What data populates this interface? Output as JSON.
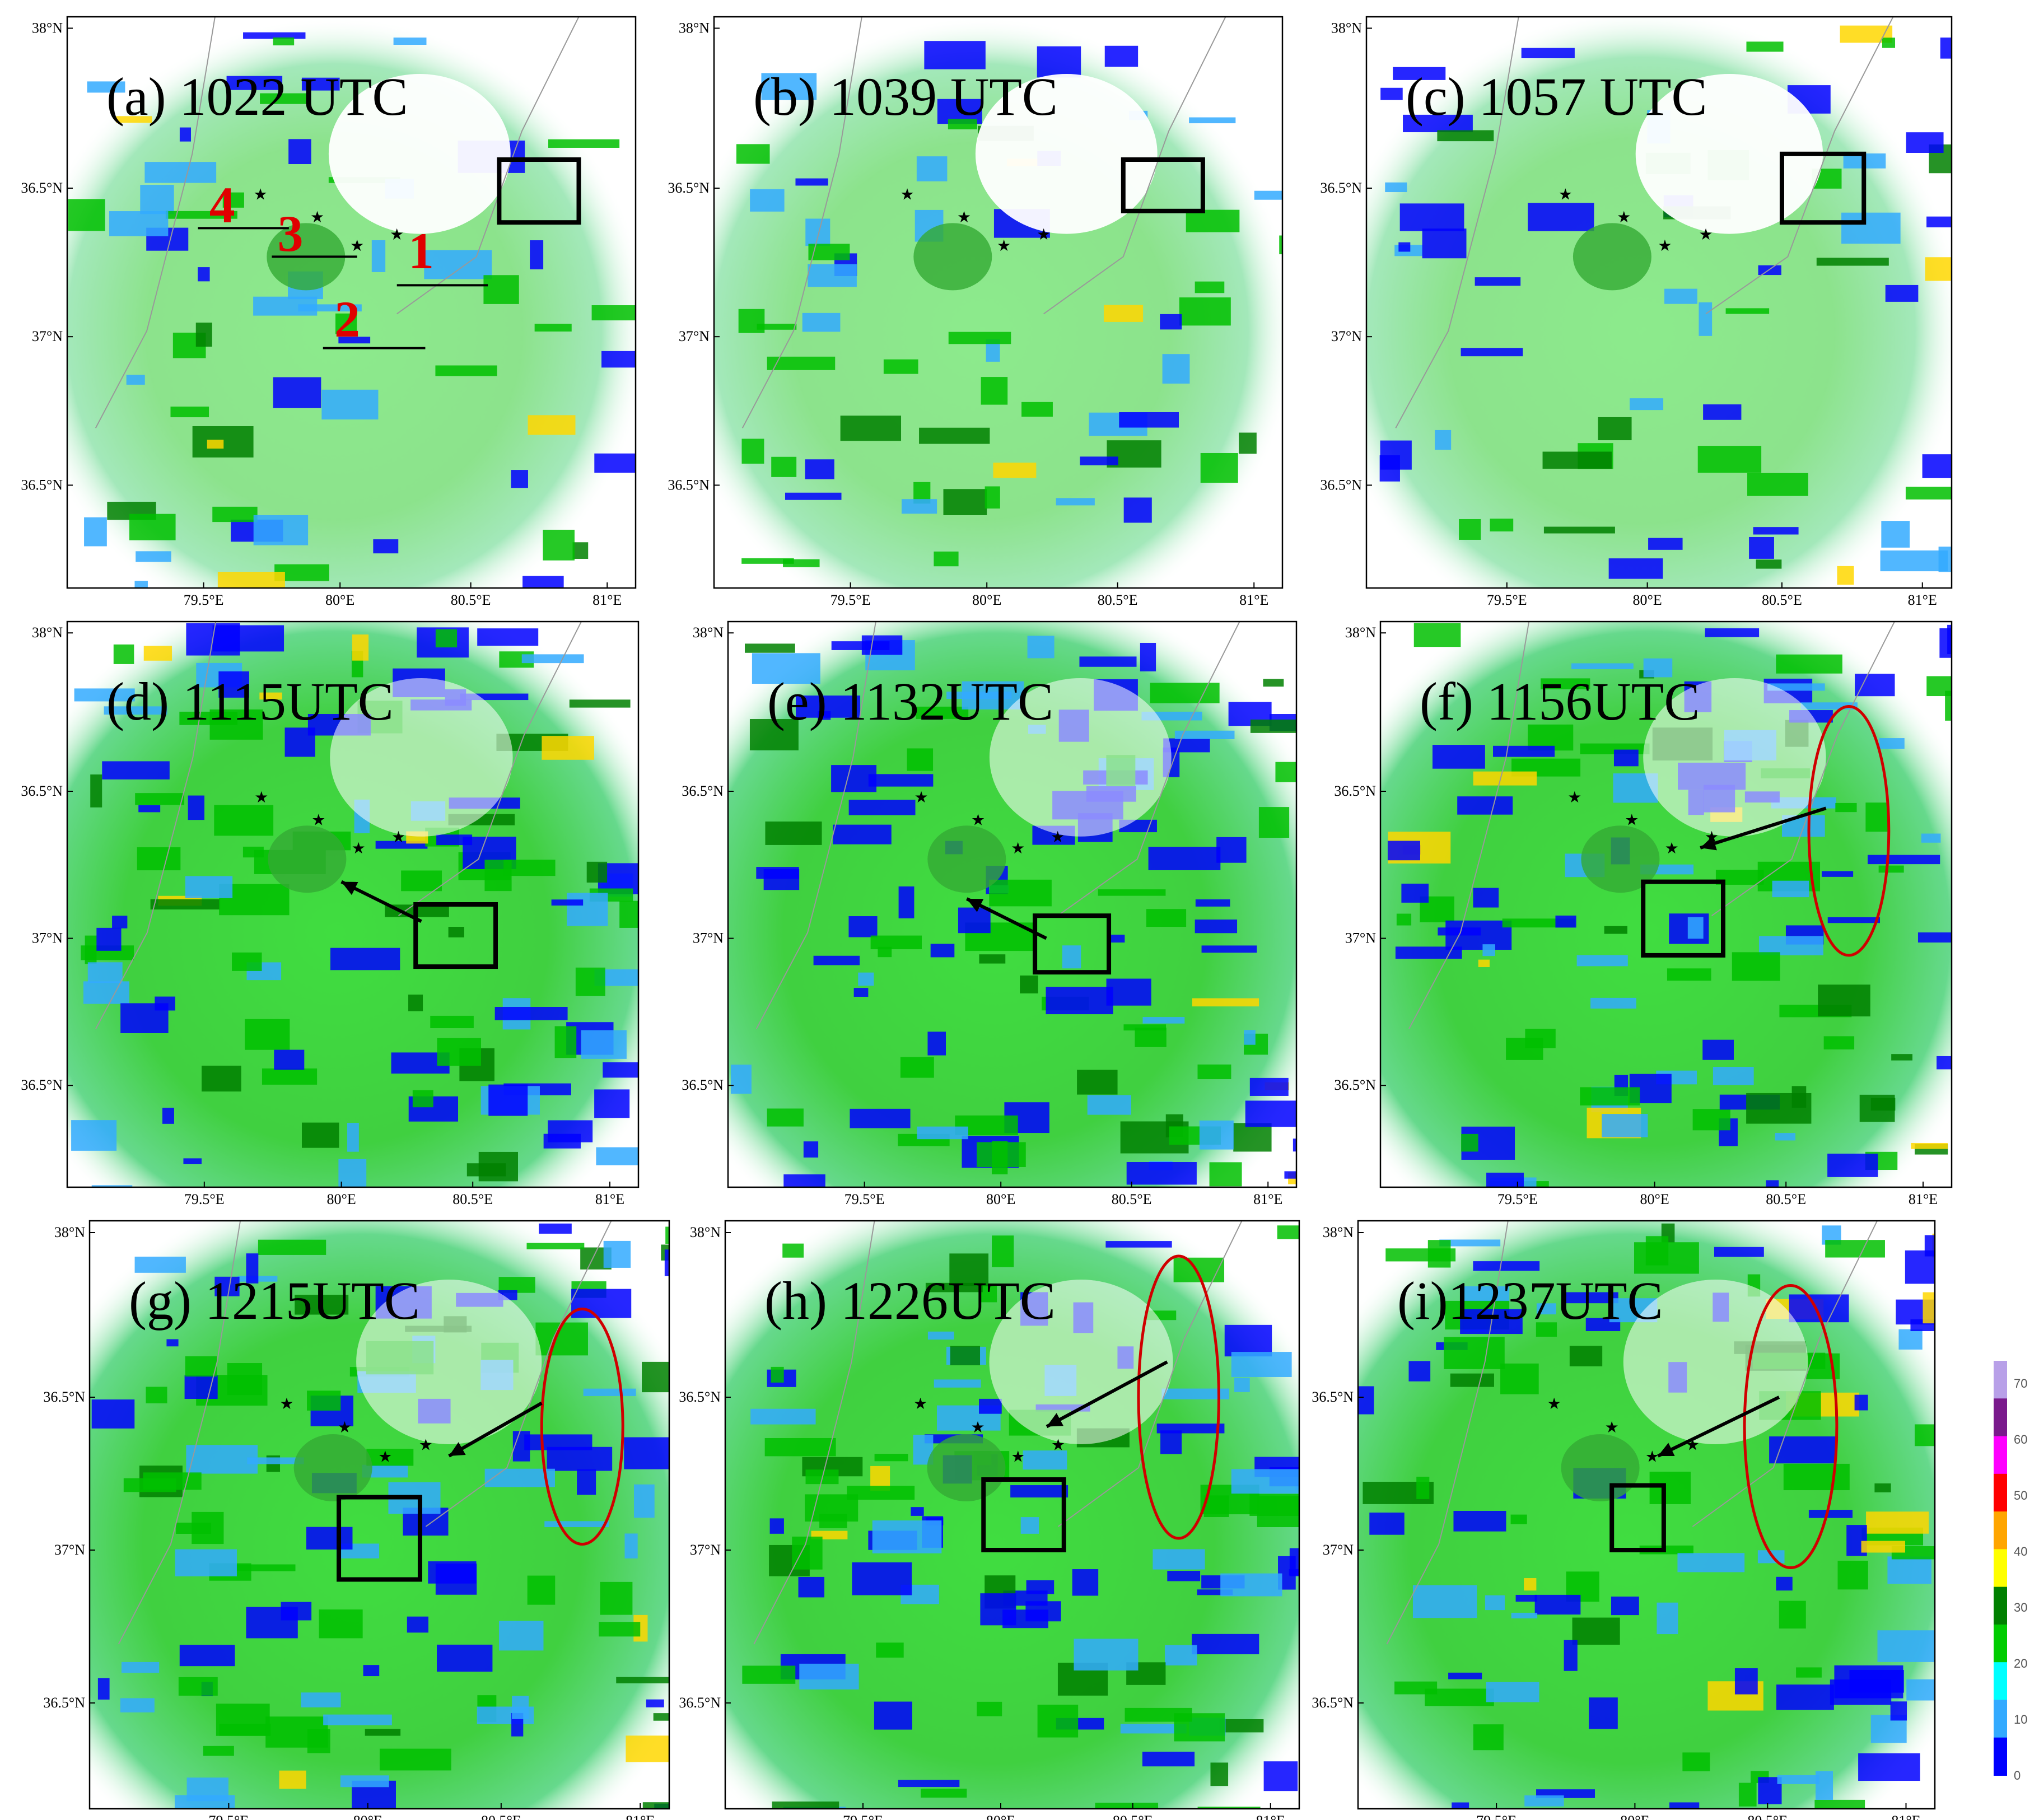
{
  "panels": [
    {
      "title": "(a) 1022 UTC"
    },
    {
      "title": "(b) 1039 UTC"
    },
    {
      "title": "(c) 1057 UTC"
    },
    {
      "title": "(d) 1115UTC"
    },
    {
      "title": "(e) 1132UTC"
    },
    {
      "title": "(f) 1156UTC"
    },
    {
      "title": "(g) 1215UTC"
    },
    {
      "title": "(h) 1226UTC"
    },
    {
      "title": "(i)1237UTC"
    }
  ],
  "axes": {
    "lat_ticks": [
      "38°N",
      "36.5°N",
      "37°N",
      "36.5°N"
    ],
    "lon_ticks": [
      "79.5°E",
      "80°E",
      "80.5°E",
      "81°E"
    ]
  },
  "cross_section_labels": [
    "1",
    "2",
    "3",
    "4"
  ],
  "colorbar": {
    "ticks": [
      "70",
      "60",
      "50",
      "40",
      "30",
      "20",
      "10",
      "0"
    ],
    "colors": [
      "#b8a0e8",
      "#7a1a8c",
      "#ff00ff",
      "#ff0000",
      "#ffa500",
      "#ffff00",
      "#008000",
      "#00cc00",
      "#00ffff",
      "#33aaff",
      "#0000ff"
    ]
  }
}
